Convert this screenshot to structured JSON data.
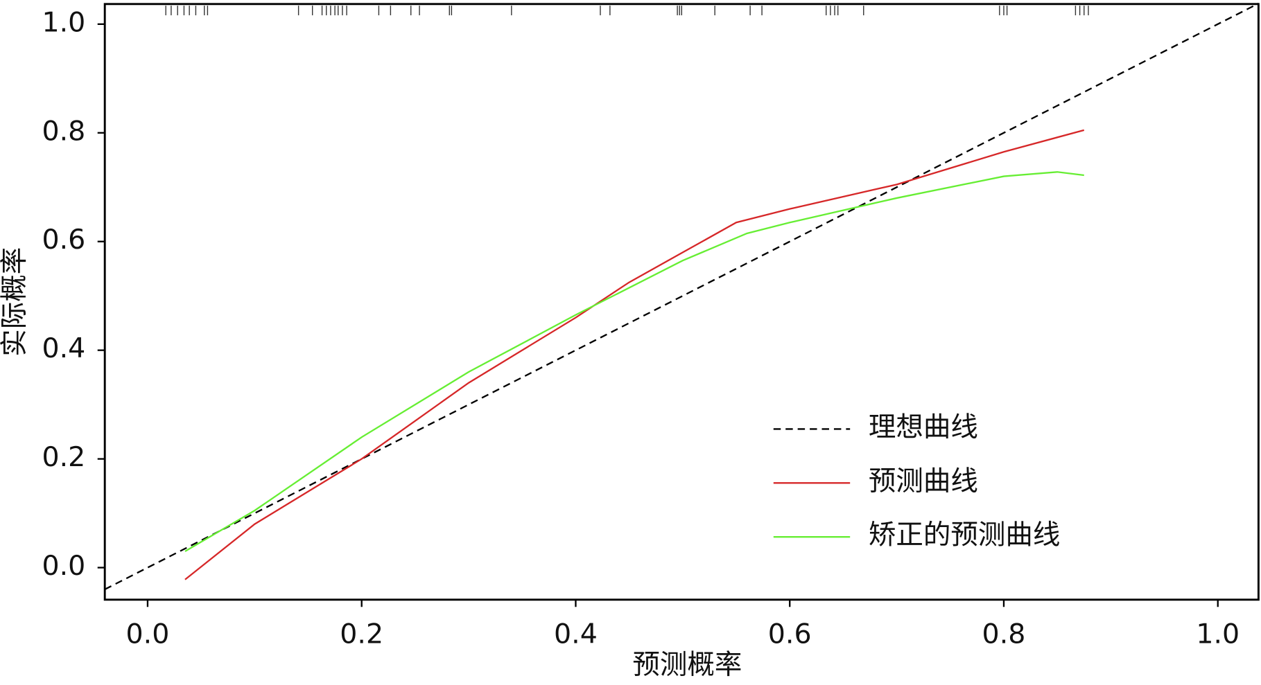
{
  "chart_data": {
    "type": "line",
    "xlabel": "预测概率",
    "ylabel": "实际概率",
    "xlim": [
      -0.04,
      1.038
    ],
    "ylim": [
      -0.059,
      1.037
    ],
    "xticks": [
      {
        "value": 0,
        "label": "0.0"
      },
      {
        "value": 0.2,
        "label": "0.2"
      },
      {
        "value": 0.4,
        "label": "0.4"
      },
      {
        "value": 0.6,
        "label": "0.6"
      },
      {
        "value": 0.8,
        "label": "0.8"
      },
      {
        "value": 1,
        "label": "1.0"
      }
    ],
    "yticks": [
      {
        "value": 0,
        "label": "0.0"
      },
      {
        "value": 0.2,
        "label": "0.2"
      },
      {
        "value": 0.4,
        "label": "0.4"
      },
      {
        "value": 0.6,
        "label": "0.6"
      },
      {
        "value": 0.8,
        "label": "0.8"
      },
      {
        "value": 1,
        "label": "1.0"
      }
    ],
    "legend": "lower right",
    "grid": false,
    "series": [
      {
        "name": "理想曲线",
        "color": "#000000",
        "linestyle": "dashed",
        "x": [
          -0.04,
          1.038
        ],
        "values": [
          -0.04,
          1.038
        ]
      },
      {
        "name": "预测曲线",
        "color": "#d62728",
        "linestyle": "solid",
        "x": [
          0.035,
          0.1,
          0.15,
          0.2,
          0.25,
          0.3,
          0.4,
          0.45,
          0.5,
          0.55,
          0.6,
          0.7,
          0.8,
          0.875
        ],
        "values": [
          -0.022,
          0.08,
          0.14,
          0.2,
          0.27,
          0.34,
          0.46,
          0.525,
          0.58,
          0.635,
          0.66,
          0.705,
          0.765,
          0.805
        ]
      },
      {
        "name": "矫正的预测曲线",
        "color": "#66ee33",
        "linestyle": "solid",
        "x": [
          0.035,
          0.1,
          0.2,
          0.3,
          0.4,
          0.5,
          0.56,
          0.6,
          0.7,
          0.8,
          0.85,
          0.875
        ],
        "values": [
          0.03,
          0.105,
          0.24,
          0.36,
          0.465,
          0.565,
          0.615,
          0.635,
          0.68,
          0.72,
          0.728,
          0.722
        ]
      }
    ],
    "rug": [
      0.017,
      0.022,
      0.028,
      0.034,
      0.039,
      0.045,
      0.053,
      0.056,
      0.141,
      0.154,
      0.163,
      0.167,
      0.171,
      0.175,
      0.178,
      0.182,
      0.186,
      0.216,
      0.227,
      0.246,
      0.254,
      0.282,
      0.284,
      0.34,
      0.423,
      0.432,
      0.495,
      0.497,
      0.499,
      0.53,
      0.563,
      0.574,
      0.634,
      0.638,
      0.642,
      0.645,
      0.669,
      0.796,
      0.8,
      0.803,
      0.867,
      0.871,
      0.875,
      0.879
    ]
  }
}
